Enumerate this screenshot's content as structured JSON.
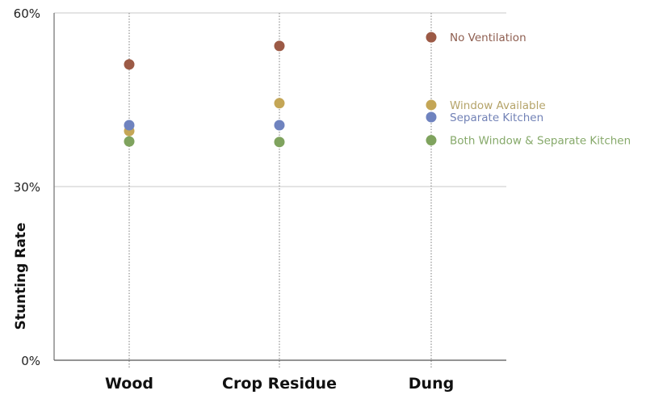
{
  "chart_data": {
    "type": "scatter",
    "title": "",
    "xlabel": "",
    "ylabel": "Stunting Rate",
    "ylim": [
      0,
      60
    ],
    "yticks": [
      0,
      30,
      60
    ],
    "ytick_labels": [
      "0%",
      "30%",
      "60%"
    ],
    "grid": "horizontal",
    "categories": [
      "Wood",
      "Crop Residue",
      "Dung"
    ],
    "legend_position": "inline-right",
    "series": [
      {
        "name": "No Ventilation",
        "color": "#9c5a46",
        "label_color": "#8e5e50",
        "values": [
          51.1,
          54.3,
          55.8
        ]
      },
      {
        "name": "Window Available",
        "color": "#c4a656",
        "label_color": "#b5a46a",
        "values": [
          39.6,
          44.4,
          44.1
        ]
      },
      {
        "name": "Separate Kitchen",
        "color": "#6f83bf",
        "label_color": "#7282b6",
        "values": [
          40.6,
          40.6,
          42.0
        ]
      },
      {
        "name": "Both Window & Separate Kitchen",
        "color": "#7fa35e",
        "label_color": "#86a96a",
        "values": [
          37.8,
          37.7,
          38.0
        ]
      }
    ]
  }
}
